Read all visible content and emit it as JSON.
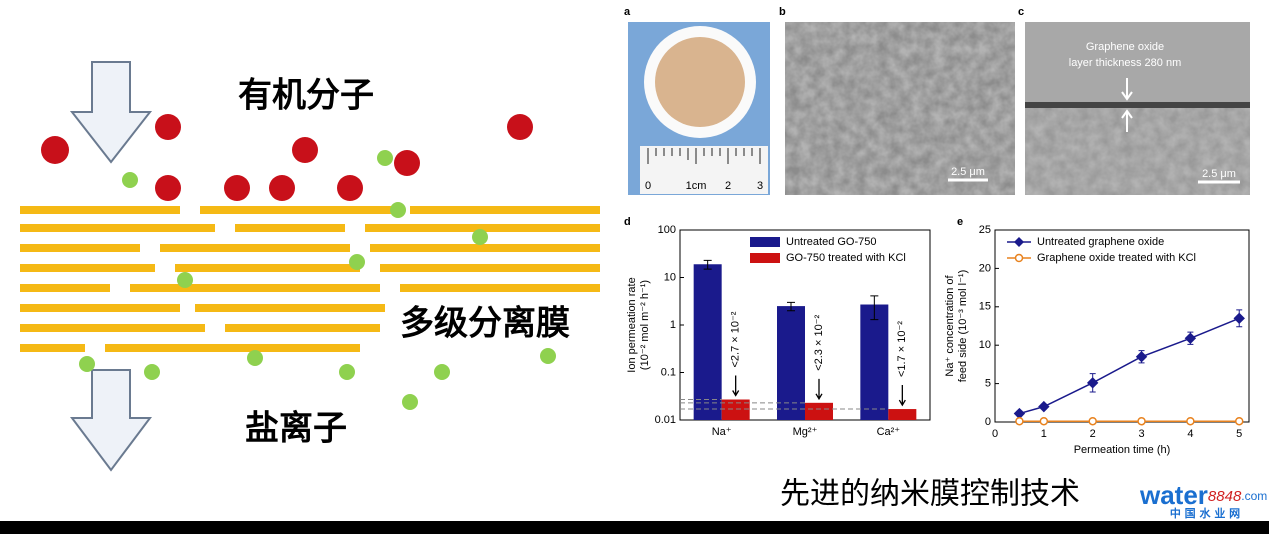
{
  "diagram": {
    "organic_label": "有机分子",
    "membrane_label": "多级分离膜",
    "salt_label": "盐离子"
  },
  "photos": [
    {
      "panel": "a",
      "ruler_labels": [
        "0",
        "1cm",
        "2",
        "3"
      ]
    },
    {
      "panel": "b",
      "scale_bar": "2.5 μm"
    },
    {
      "panel": "c",
      "annotation": [
        "Graphene oxide",
        "layer thickness 280 nm"
      ],
      "scale_bar": "2.5 μm"
    }
  ],
  "chart_data": [
    {
      "panel": "d",
      "type": "bar",
      "log_scale": true,
      "categories": [
        "Na⁺",
        "Mg²⁺",
        "Ca²⁺"
      ],
      "ylabel": [
        "Ion permeation rate",
        "(10⁻² mol m⁻² h⁻¹)"
      ],
      "ylim": [
        0.01,
        100
      ],
      "yticks": [
        0.01,
        0.1,
        1,
        10,
        100
      ],
      "legend": "upper right",
      "series": [
        {
          "name": "Untreated GO-750",
          "color": "#1a1a8c",
          "values": [
            19,
            2.5,
            2.7
          ],
          "errors": [
            4,
            0.5,
            1.4
          ]
        },
        {
          "name": "GO-750 treated with KCl",
          "color": "#cc1111",
          "values": [
            0.027,
            0.023,
            0.017
          ],
          "value_labels": [
            "<2.7 × 10⁻²",
            "<2.3 × 10⁻²",
            "<1.7 × 10⁻²"
          ],
          "dashed_limits": true
        }
      ]
    },
    {
      "panel": "e",
      "type": "line",
      "x": [
        0.5,
        1,
        2,
        3,
        4,
        5
      ],
      "xlim": [
        0,
        5.2
      ],
      "xticks": [
        0,
        1,
        2,
        3,
        4,
        5
      ],
      "ylim": [
        0,
        25
      ],
      "yticks": [
        0,
        5,
        10,
        15,
        20,
        25
      ],
      "xlabel": "Permeation time (h)",
      "ylabel": [
        "Na⁺ concentration of",
        "feed side (10⁻³ mol l⁻¹)"
      ],
      "legend": "upper left",
      "series": [
        {
          "name": "Untreated graphene oxide",
          "color": "#1a1a8c",
          "marker": "diamond",
          "values": [
            1.1,
            2.0,
            5.1,
            8.5,
            10.9,
            13.5
          ],
          "errors": [
            0.3,
            0.3,
            1.2,
            0.8,
            0.8,
            1.1
          ]
        },
        {
          "name": "Graphene oxide treated with KCl",
          "color": "#e8821e",
          "marker": "circle",
          "values": [
            0.1,
            0.1,
            0.1,
            0.1,
            0.1,
            0.1
          ]
        }
      ]
    }
  ],
  "footer": {
    "title": "先进的纳米膜控制技术",
    "logo": {
      "word": "water",
      "number": "8848",
      "domain": ".com"
    },
    "site": "中 国 水 业 网"
  }
}
